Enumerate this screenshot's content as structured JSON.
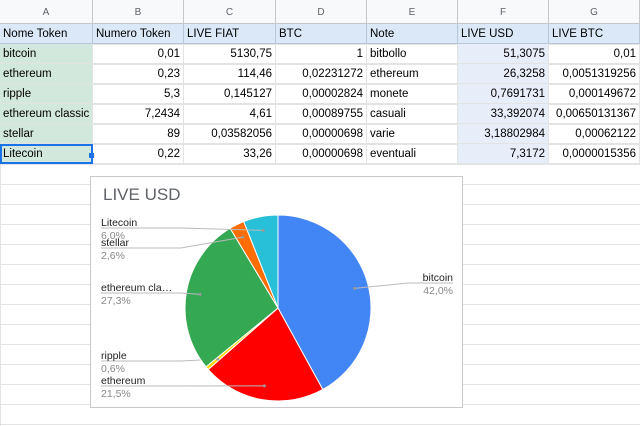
{
  "columns": [
    "A",
    "B",
    "C",
    "D",
    "E",
    "F",
    "G"
  ],
  "header": [
    "Nome Token",
    "Numero Token",
    "LIVE FIAT",
    "BTC",
    "Note",
    "LIVE USD",
    "LIVE BTC"
  ],
  "rows": [
    [
      "bitcoin",
      "0,01",
      "5130,75",
      "1",
      "bitbollo",
      "51,3075",
      "0,01"
    ],
    [
      "ethereum",
      "0,23",
      "114,46",
      "0,02231272",
      "ethereum",
      "26,3258",
      "0,0051319256"
    ],
    [
      "ripple",
      "5,3",
      "0,145127",
      "0,00002824",
      "monete",
      "0,7691731",
      "0,000149672"
    ],
    [
      "ethereum classic",
      "7,2434",
      "4,61",
      "0,00089755",
      "casuali",
      "33,392074",
      "0,00650131367"
    ],
    [
      "stellar",
      "89",
      "0,03582056",
      "0,00000698",
      "varie",
      "3,18802984",
      "0,00062122"
    ],
    [
      "Litecoin",
      "0,22",
      "33,26",
      "0,00000698",
      "eventuali",
      "7,3172",
      "0,0000015356"
    ]
  ],
  "chart_data": {
    "type": "pie",
    "title": "LIVE USD",
    "slices": [
      {
        "label": "bitcoin",
        "pct_label": "42,0%",
        "value": 42.0,
        "color": "#4285f4"
      },
      {
        "label": "ethereum",
        "pct_label": "21,5%",
        "value": 21.5,
        "color": "#ff0000"
      },
      {
        "label": "ripple",
        "pct_label": "0,6%",
        "value": 0.6,
        "color": "#ffd700"
      },
      {
        "label": "ethereum cla…",
        "pct_label": "27,3%",
        "value": 27.3,
        "color": "#34a853"
      },
      {
        "label": "stellar",
        "pct_label": "2,6%",
        "value": 2.6,
        "color": "#ff6d01"
      },
      {
        "label": "Litecoin",
        "pct_label": "6,0%",
        "value": 6.0,
        "color": "#27c0d8"
      }
    ]
  }
}
